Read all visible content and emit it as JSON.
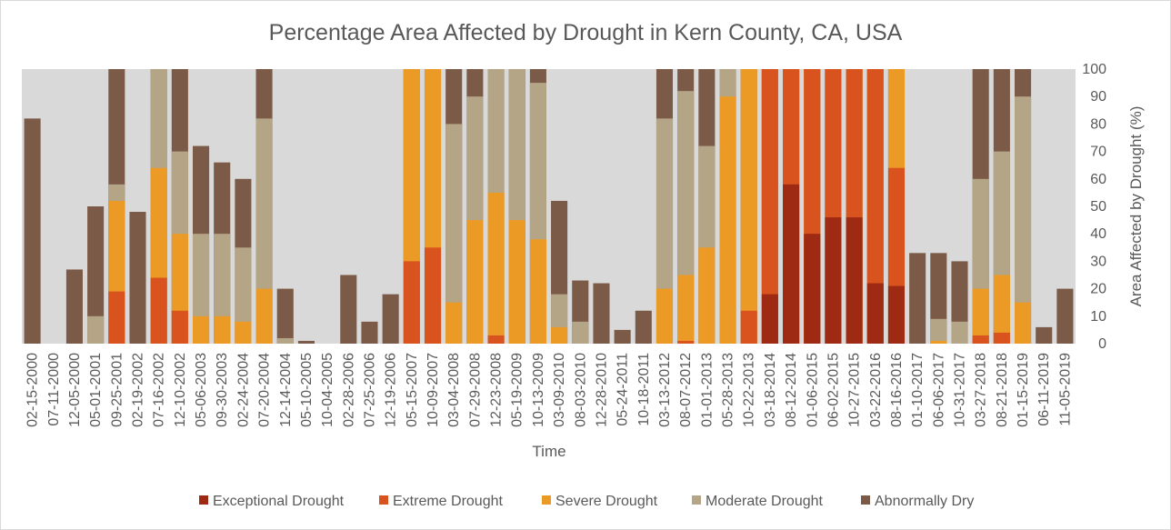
{
  "chart_data": {
    "type": "area",
    "title": "Percentage Area Affected by Drought in Kern County, CA, USA",
    "xlabel": "Time",
    "ylabel": "Area Affected by Drought (%)",
    "ylim": [
      0,
      100
    ],
    "y_ticks": [
      0,
      10,
      20,
      30,
      40,
      50,
      60,
      70,
      80,
      90,
      100
    ],
    "y_axis_side": "right",
    "legend_position": "bottom",
    "stacking": "cumulative levels (each category includes more severe categories)",
    "x_tick_labels": [
      "02-15-2000",
      "07-11-2000",
      "12-05-2000",
      "05-01-2001",
      "09-25-2001",
      "02-19-2002",
      "07-16-2002",
      "12-10-2002",
      "05-06-2003",
      "09-30-2003",
      "02-24-2004",
      "07-20-2004",
      "12-14-2004",
      "05-10-2005",
      "10-04-2005",
      "02-28-2006",
      "07-25-2006",
      "12-19-2006",
      "05-15-2007",
      "10-09-2007",
      "03-04-2008",
      "07-29-2008",
      "12-23-2008",
      "05-19-2009",
      "10-13-2009",
      "03-09-2010",
      "08-03-2010",
      "12-28-2010",
      "05-24-2011",
      "10-18-2011",
      "03-13-2012",
      "08-07-2012",
      "01-01-2013",
      "05-28-2013",
      "10-22-2013",
      "03-18-2014",
      "08-12-2014",
      "01-06-2015",
      "06-02-2015",
      "10-27-2015",
      "03-22-2016",
      "08-16-2016",
      "01-10-2017",
      "06-06-2017",
      "10-31-2017",
      "03-27-2018",
      "08-21-2018",
      "01-15-2019",
      "06-11-2019",
      "11-05-2019"
    ],
    "series": [
      {
        "name": "Exceptional Drought",
        "color": "#9e2a13",
        "values": [
          0,
          0,
          0,
          0,
          0,
          0,
          0,
          0,
          0,
          0,
          0,
          0,
          0,
          0,
          0,
          0,
          0,
          0,
          0,
          0,
          0,
          0,
          0,
          0,
          0,
          0,
          0,
          0,
          0,
          0,
          0,
          0,
          0,
          0,
          0,
          18,
          58,
          40,
          46,
          46,
          22,
          21,
          0,
          0,
          0,
          0,
          0,
          0,
          0,
          0
        ]
      },
      {
        "name": "Extreme Drought",
        "color": "#d9531e",
        "values": [
          0,
          0,
          0,
          0,
          19,
          0,
          24,
          12,
          0,
          0,
          0,
          0,
          0,
          0,
          0,
          0,
          0,
          0,
          30,
          35,
          0,
          0,
          3,
          0,
          0,
          0,
          0,
          0,
          0,
          0,
          0,
          1,
          0,
          0,
          12,
          100,
          100,
          100,
          100,
          100,
          100,
          64,
          0,
          0,
          0,
          3,
          4,
          0,
          0,
          0
        ]
      },
      {
        "name": "Severe Drought",
        "color": "#eb9a26",
        "values": [
          0,
          0,
          0,
          0,
          52,
          0,
          64,
          40,
          10,
          10,
          8,
          20,
          0,
          0,
          0,
          0,
          0,
          0,
          100,
          100,
          15,
          45,
          55,
          45,
          38,
          6,
          0,
          0,
          0,
          0,
          20,
          25,
          35,
          90,
          100,
          100,
          100,
          100,
          100,
          100,
          100,
          100,
          0,
          1,
          0,
          20,
          25,
          15,
          0,
          0
        ]
      },
      {
        "name": "Moderate Drought",
        "color": "#b5a587",
        "values": [
          0,
          0,
          0,
          10,
          58,
          0,
          100,
          70,
          40,
          40,
          35,
          82,
          2,
          0,
          0,
          0,
          0,
          0,
          100,
          100,
          80,
          90,
          100,
          100,
          95,
          18,
          8,
          0,
          0,
          0,
          82,
          92,
          72,
          100,
          100,
          100,
          100,
          100,
          100,
          100,
          100,
          100,
          0,
          9,
          8,
          60,
          70,
          90,
          0,
          0
        ]
      },
      {
        "name": "Abnormally Dry",
        "color": "#7b5a48",
        "values": [
          82,
          0,
          27,
          50,
          100,
          48,
          100,
          100,
          72,
          66,
          60,
          100,
          20,
          1,
          0,
          25,
          8,
          18,
          100,
          100,
          100,
          100,
          100,
          100,
          100,
          52,
          23,
          22,
          5,
          12,
          100,
          100,
          100,
          100,
          100,
          100,
          100,
          100,
          100,
          100,
          100,
          100,
          33,
          33,
          30,
          100,
          100,
          100,
          6,
          20
        ]
      }
    ]
  }
}
